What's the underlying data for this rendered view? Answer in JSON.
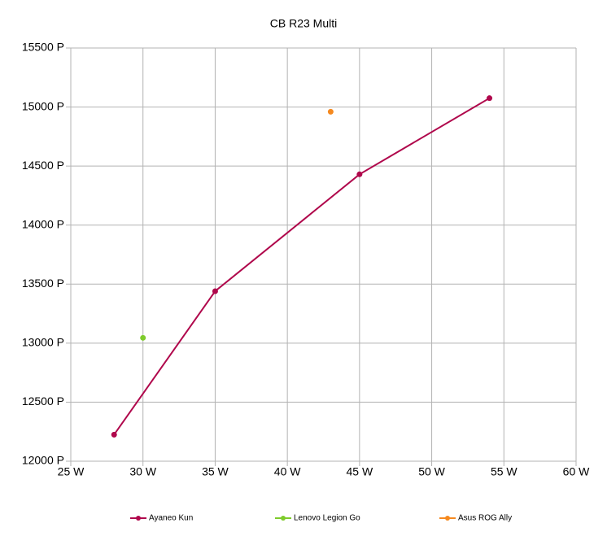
{
  "chart_data": {
    "type": "line",
    "title": "CB R23 Multi",
    "series": [
      {
        "name": "Ayaneo Kun",
        "color": "#b0084c",
        "x": [
          28,
          35,
          45,
          54
        ],
        "values": [
          12225,
          13440,
          14430,
          15075
        ]
      },
      {
        "name": "Lenovo Legion Go",
        "color": "#7ecb2c",
        "x": [
          30
        ],
        "values": [
          13045
        ]
      },
      {
        "name": "Asus ROG Ally",
        "color": "#f5891f",
        "x": [
          43
        ],
        "values": [
          14960
        ]
      }
    ],
    "xlim": [
      25,
      60
    ],
    "xticks": [
      {
        "value": 25,
        "label": "25 W"
      },
      {
        "value": 30,
        "label": "30 W"
      },
      {
        "value": 35,
        "label": "35 W"
      },
      {
        "value": 40,
        "label": "40 W"
      },
      {
        "value": 45,
        "label": "45 W"
      },
      {
        "value": 50,
        "label": "50 W"
      },
      {
        "value": 55,
        "label": "55 W"
      },
      {
        "value": 60,
        "label": "60 W"
      }
    ],
    "ylim": [
      12000,
      15500
    ],
    "yticks": [
      {
        "value": 12000,
        "label": "12000 P"
      },
      {
        "value": 12500,
        "label": "12500 P"
      },
      {
        "value": 13000,
        "label": "13000 P"
      },
      {
        "value": 13500,
        "label": "13500 P"
      },
      {
        "value": 14000,
        "label": "14000 P"
      },
      {
        "value": 14500,
        "label": "14500 P"
      },
      {
        "value": 15000,
        "label": "15000 P"
      },
      {
        "value": 15500,
        "label": "15500 P"
      }
    ],
    "grid": true,
    "legend": "bottom"
  }
}
